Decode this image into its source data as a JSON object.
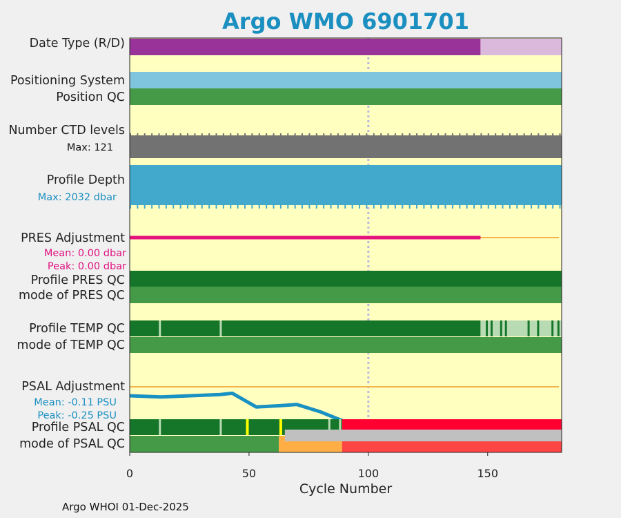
{
  "chart_data": {
    "type": "bar",
    "title": "Argo WMO 6901701",
    "xlabel": "Cycle Number",
    "xlim": [
      0,
      181
    ],
    "xticks": [
      0,
      50,
      100,
      150
    ],
    "reference_cycle": 100,
    "footer": "Argo WHOI 01-Dec-2025",
    "rows": {
      "date_type": {
        "label": "Date Type (R/D)",
        "segments": [
          {
            "from": 0,
            "to": 147,
            "value": "D"
          },
          {
            "from": 147,
            "to": 181,
            "value": "R"
          }
        ]
      },
      "positioning_system": {
        "label": "Positioning System",
        "segments": [
          {
            "from": 0,
            "to": 181,
            "value": "GPS"
          }
        ]
      },
      "position_qc": {
        "label": "Position QC",
        "segments": [
          {
            "from": 0,
            "to": 181,
            "value": "1"
          }
        ]
      },
      "ctd_levels": {
        "label": "Number CTD levels",
        "max_label": "Max: 121",
        "max": 121
      },
      "profile_depth": {
        "label": "Profile Depth",
        "max_label": "Max: 2032 dbar",
        "max": 2032
      },
      "pres_adjustment": {
        "label": "PRES Adjustment",
        "mean_label": "Mean: 0.00 dbar",
        "peak_label": "Peak: 0.00 dbar",
        "cycles": [
          0,
          147
        ],
        "values": [
          0.0,
          0.0
        ],
        "zero_line": [
          0,
          181
        ]
      },
      "profile_pres_qc": {
        "label": "Profile PRES QC",
        "segments": [
          {
            "from": 0,
            "to": 181,
            "value": "A"
          }
        ]
      },
      "mode_pres_qc": {
        "label": "mode of PRES QC",
        "segments": [
          {
            "from": 0,
            "to": 181,
            "value": "1"
          }
        ]
      },
      "profile_temp_qc": {
        "label": "Profile TEMP QC",
        "segments": [
          {
            "from": 0,
            "to": 147,
            "value": "A"
          },
          {
            "from": 147,
            "to": 181,
            "value": "B"
          }
        ],
        "gaps": [
          12.5,
          38,
          149.5,
          151.5,
          155.5,
          157.5,
          167,
          171,
          177,
          179.5
        ]
      },
      "mode_temp_qc": {
        "label": "mode of TEMP QC",
        "segments": [
          {
            "from": 0,
            "to": 181,
            "value": "1"
          }
        ]
      },
      "psal_adjustment": {
        "label": "PSAL Adjustment",
        "mean_label": "Mean: -0.11 PSU",
        "peak_label": "Peak: -0.25 PSU",
        "cycles": [
          0,
          13,
          38,
          43,
          53,
          63,
          70,
          80,
          89
        ],
        "values": [
          -0.05,
          -0.06,
          -0.04,
          -0.03,
          -0.14,
          -0.13,
          -0.12,
          -0.18,
          -0.25
        ],
        "zero_line": [
          0,
          181
        ],
        "ylim": [
          -0.3,
          0.1
        ]
      },
      "profile_psal_qc": {
        "label": "Profile PSAL QC",
        "segments": [
          {
            "from": 0,
            "to": 89,
            "value": "A"
          },
          {
            "from": 89,
            "to": 181,
            "value": "F"
          }
        ],
        "gaps": [
          12.5,
          38,
          83.5,
          88
        ],
        "flags": [
          {
            "at": 49,
            "value": "yellow"
          },
          {
            "at": 63,
            "value": "yellow"
          }
        ]
      },
      "mode_psal_qc": {
        "label": "mode of PSAL QC",
        "segments": [
          {
            "from": 0,
            "to": 62.5,
            "value": "1"
          },
          {
            "from": 62.5,
            "to": 89,
            "value": "3"
          },
          {
            "from": 89,
            "to": 181,
            "value": "4"
          }
        ],
        "overlay": {
          "from": 65,
          "to": 181,
          "value": "grey"
        }
      }
    },
    "colors": {
      "plot_bg": "#ffffc0",
      "date_D": "#993399",
      "date_R": "#dbb9dd",
      "gps": "#80c5de",
      "qc_good": "#449a46",
      "qc_A": "#15762a",
      "qc_B": "#b8dbb3",
      "qc_F": "#ff0030",
      "qc_3": "#ffad45",
      "qc_4": "#ff4444",
      "qc_grey": "#c0c0c0",
      "qc_yellow": "#ffff00",
      "ctd_grey": "#727272",
      "depth_blue": "#42a9cd",
      "pres_line": "#e5127d",
      "psal_line": "#1991c2",
      "zero_line": "#f4b44c",
      "ref_line": "#b9b8e0"
    }
  }
}
